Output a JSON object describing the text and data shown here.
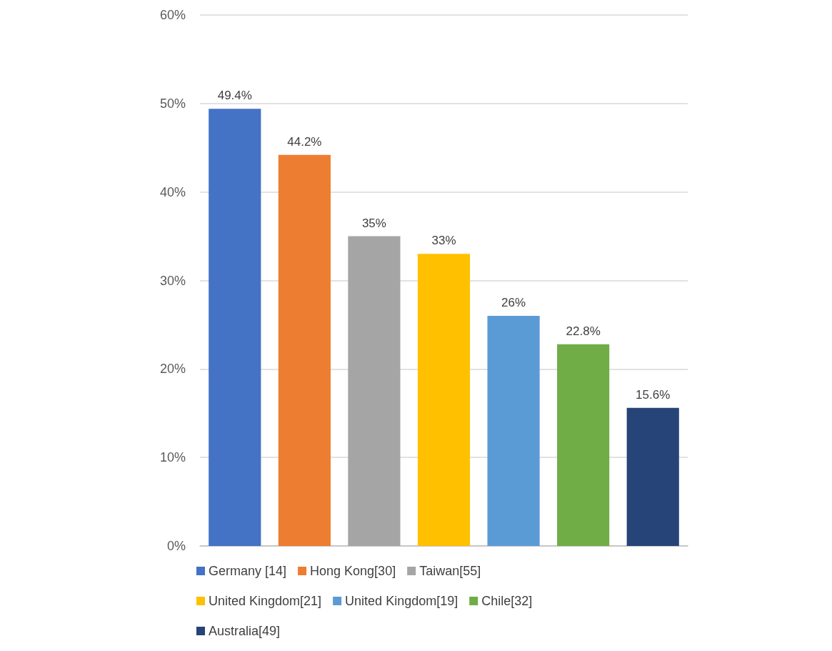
{
  "chart_data": {
    "type": "bar",
    "categories": [
      null,
      null,
      null,
      null,
      null,
      null,
      null
    ],
    "series": [
      {
        "name": "Germany [14]",
        "color": "#4472c4",
        "values": [
          49.4,
          null,
          null,
          null,
          null,
          null,
          null
        ],
        "value_labels": [
          "49.4%",
          null,
          null,
          null,
          null,
          null,
          null
        ]
      },
      {
        "name": "Hong Kong[30]",
        "color": "#ed7d31",
        "values": [
          null,
          44.2,
          null,
          null,
          null,
          null,
          null
        ],
        "value_labels": [
          null,
          "44.2%",
          null,
          null,
          null,
          null,
          null
        ]
      },
      {
        "name": "Taiwan[55]",
        "color": "#a5a5a5",
        "values": [
          null,
          null,
          35,
          null,
          null,
          null,
          null
        ],
        "value_labels": [
          null,
          null,
          "35%",
          null,
          null,
          null,
          null
        ]
      },
      {
        "name": "United Kingdom[21]",
        "color": "#ffc000",
        "values": [
          null,
          null,
          null,
          33,
          null,
          null,
          null
        ],
        "value_labels": [
          null,
          null,
          null,
          "33%",
          null,
          null,
          null
        ]
      },
      {
        "name": "United Kingdom[19]",
        "color": "#5b9bd5",
        "values": [
          null,
          null,
          null,
          null,
          26,
          null,
          null
        ],
        "value_labels": [
          null,
          null,
          null,
          null,
          "26%",
          null,
          null
        ]
      },
      {
        "name": "Chile[32]",
        "color": "#70ad47",
        "values": [
          null,
          null,
          null,
          null,
          null,
          22.8,
          null
        ],
        "value_labels": [
          null,
          null,
          null,
          null,
          null,
          "22.8%",
          null
        ]
      },
      {
        "name": "Australia[49]",
        "color": "#264478",
        "values": [
          null,
          null,
          null,
          null,
          null,
          null,
          15.6
        ],
        "value_labels": [
          null,
          null,
          null,
          null,
          null,
          null,
          "15.6%"
        ]
      }
    ],
    "ylim": [
      0,
      60
    ],
    "yticks": [
      {
        "value": 0,
        "label": "0%"
      },
      {
        "value": 10,
        "label": "10%"
      },
      {
        "value": 20,
        "label": "20%"
      },
      {
        "value": 30,
        "label": "30%"
      },
      {
        "value": 40,
        "label": "40%"
      },
      {
        "value": 50,
        "label": "50%"
      },
      {
        "value": 60,
        "label": "60%"
      }
    ],
    "grid": "y",
    "legend": "bottom"
  }
}
